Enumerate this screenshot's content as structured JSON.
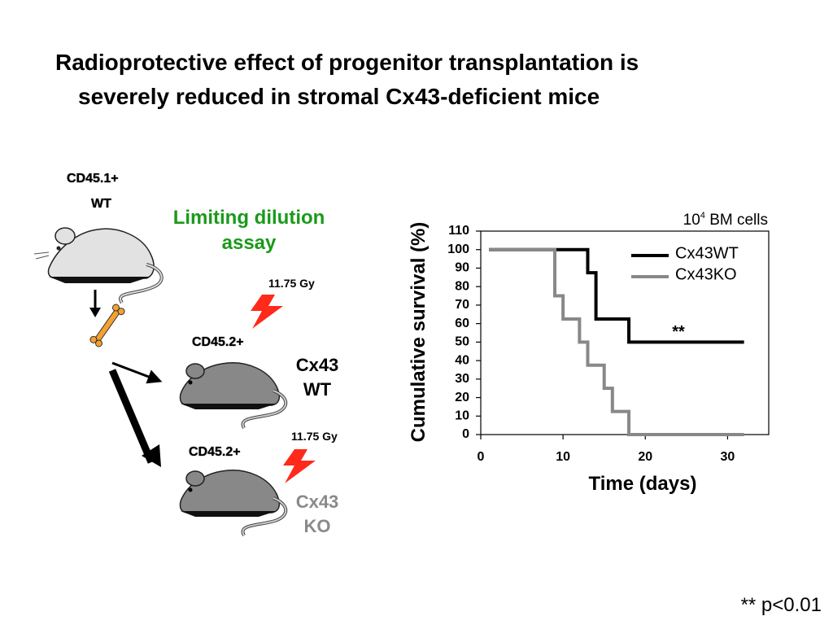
{
  "slide": {
    "title_line1": "Radioprotective effect of progenitor transplantation is",
    "title_line2": "severely reduced in stromal Cx43-deficient mice",
    "footnote": "** p<0.01"
  },
  "schematic": {
    "donor_marker": "CD45.1+",
    "donor_genotype": "WT",
    "assay_line1": "Limiting dilution",
    "assay_line2": "assay",
    "dose_1": "11.75 Gy",
    "dose_2": "11.75 Gy",
    "recipient1_marker": "CD45.2+",
    "recipient1_line1": "Cx43",
    "recipient1_line2": "WT",
    "recipient2_marker": "CD45.2+",
    "recipient2_line1": "Cx43",
    "recipient2_line2": "KO",
    "colors": {
      "green": "#1a9a1a",
      "ko_grey": "#8a8a8a",
      "bolt": "#ff2a1a",
      "bone": "#f5a030"
    }
  },
  "chart_data": {
    "type": "line",
    "step": true,
    "annotation_base": "10",
    "annotation_sup": "4",
    "annotation_rest": " BM cells",
    "significance": "**",
    "xlabel": "Time (days)",
    "ylabel": "Cumulative survival (%)",
    "xlim": [
      0,
      35
    ],
    "ylim": [
      0,
      110
    ],
    "xticks": [
      0,
      10,
      20,
      30
    ],
    "yticks": [
      0,
      10,
      20,
      30,
      40,
      50,
      60,
      70,
      80,
      90,
      100,
      110
    ],
    "legend_position": "top-right",
    "series": [
      {
        "name": "Cx43WT",
        "color": "#000000",
        "x": [
          1,
          13,
          13,
          14,
          14,
          18,
          18,
          32
        ],
        "y": [
          100,
          100,
          87.5,
          87.5,
          62.5,
          62.5,
          50,
          50
        ]
      },
      {
        "name": "Cx43KO",
        "color": "#888888",
        "x": [
          1,
          9,
          9,
          10,
          10,
          12,
          12,
          13,
          13,
          15,
          15,
          16,
          16,
          18,
          18,
          32
        ],
        "y": [
          100,
          100,
          75,
          75,
          62.5,
          62.5,
          50,
          50,
          37.5,
          37.5,
          25,
          25,
          12.5,
          12.5,
          0,
          0
        ]
      }
    ]
  }
}
